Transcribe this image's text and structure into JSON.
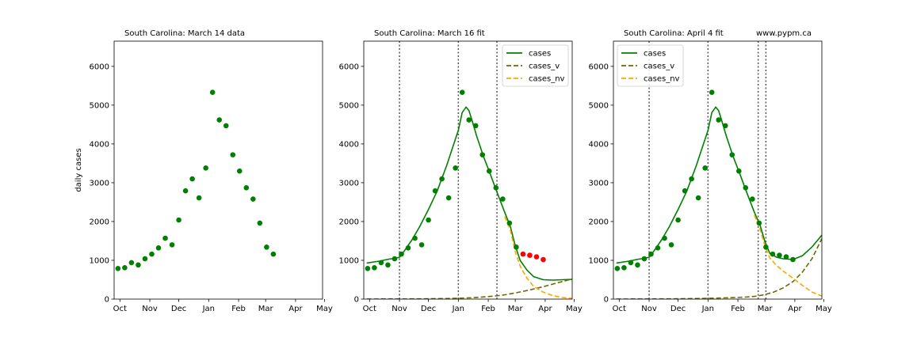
{
  "chart_data": [
    {
      "type": "scatter",
      "title": "South Carolina:  March 14 data",
      "ylabel": "daily cases",
      "xlim": [
        -6,
        210
      ],
      "ylim": [
        0,
        6650
      ],
      "x_ticks": [
        {
          "label": "Oct",
          "x": 0
        },
        {
          "label": "Nov",
          "x": 31
        },
        {
          "label": "Dec",
          "x": 61
        },
        {
          "label": "Jan",
          "x": 92
        },
        {
          "label": "Feb",
          "x": 123
        },
        {
          "label": "Mar",
          "x": 151
        },
        {
          "label": "Apr",
          "x": 182
        },
        {
          "label": "May",
          "x": 212
        }
      ],
      "y_ticks": [
        0,
        1000,
        2000,
        3000,
        4000,
        5000,
        6000
      ],
      "points": [
        {
          "x": -2,
          "y": 790,
          "color": "#008000"
        },
        {
          "x": 5,
          "y": 810,
          "color": "#008000"
        },
        {
          "x": 12,
          "y": 940,
          "color": "#008000"
        },
        {
          "x": 19,
          "y": 880,
          "color": "#008000"
        },
        {
          "x": 26,
          "y": 1040,
          "color": "#008000"
        },
        {
          "x": 33,
          "y": 1160,
          "color": "#008000"
        },
        {
          "x": 40,
          "y": 1320,
          "color": "#008000"
        },
        {
          "x": 47,
          "y": 1570,
          "color": "#008000"
        },
        {
          "x": 54,
          "y": 1400,
          "color": "#008000"
        },
        {
          "x": 61,
          "y": 2040,
          "color": "#008000"
        },
        {
          "x": 68,
          "y": 2790,
          "color": "#008000"
        },
        {
          "x": 75,
          "y": 3100,
          "color": "#008000"
        },
        {
          "x": 82,
          "y": 2610,
          "color": "#008000"
        },
        {
          "x": 89,
          "y": 3380,
          "color": "#008000"
        },
        {
          "x": 96,
          "y": 5330,
          "color": "#008000"
        },
        {
          "x": 103,
          "y": 4620,
          "color": "#008000"
        },
        {
          "x": 110,
          "y": 4470,
          "color": "#008000"
        },
        {
          "x": 117,
          "y": 3720,
          "color": "#008000"
        },
        {
          "x": 124,
          "y": 3300,
          "color": "#008000"
        },
        {
          "x": 131,
          "y": 2870,
          "color": "#008000"
        },
        {
          "x": 138,
          "y": 2580,
          "color": "#008000"
        },
        {
          "x": 145,
          "y": 1960,
          "color": "#008000"
        },
        {
          "x": 152,
          "y": 1340,
          "color": "#008000"
        },
        {
          "x": 159,
          "y": 1160,
          "color": "#008000"
        }
      ],
      "series": [],
      "vlines": [],
      "legend": null,
      "annotation": ""
    },
    {
      "type": "line",
      "title": "South Carolina:  March 16 fit",
      "ylabel": "",
      "xlim": [
        -6,
        210
      ],
      "ylim": [
        0,
        6650
      ],
      "x_ticks": [
        {
          "label": "Oct",
          "x": 0
        },
        {
          "label": "Nov",
          "x": 31
        },
        {
          "label": "Dec",
          "x": 61
        },
        {
          "label": "Jan",
          "x": 92
        },
        {
          "label": "Feb",
          "x": 123
        },
        {
          "label": "Mar",
          "x": 151
        },
        {
          "label": "Apr",
          "x": 182
        },
        {
          "label": "May",
          "x": 212
        }
      ],
      "y_ticks": [
        0,
        1000,
        2000,
        3000,
        4000,
        5000,
        6000
      ],
      "points": [
        {
          "x": -2,
          "y": 790,
          "color": "#008000"
        },
        {
          "x": 5,
          "y": 810,
          "color": "#008000"
        },
        {
          "x": 12,
          "y": 940,
          "color": "#008000"
        },
        {
          "x": 19,
          "y": 880,
          "color": "#008000"
        },
        {
          "x": 26,
          "y": 1040,
          "color": "#008000"
        },
        {
          "x": 33,
          "y": 1160,
          "color": "#008000"
        },
        {
          "x": 40,
          "y": 1320,
          "color": "#008000"
        },
        {
          "x": 47,
          "y": 1570,
          "color": "#008000"
        },
        {
          "x": 54,
          "y": 1400,
          "color": "#008000"
        },
        {
          "x": 61,
          "y": 2040,
          "color": "#008000"
        },
        {
          "x": 68,
          "y": 2790,
          "color": "#008000"
        },
        {
          "x": 75,
          "y": 3100,
          "color": "#008000"
        },
        {
          "x": 82,
          "y": 2610,
          "color": "#008000"
        },
        {
          "x": 89,
          "y": 3380,
          "color": "#008000"
        },
        {
          "x": 96,
          "y": 5330,
          "color": "#008000"
        },
        {
          "x": 103,
          "y": 4620,
          "color": "#008000"
        },
        {
          "x": 110,
          "y": 4470,
          "color": "#008000"
        },
        {
          "x": 117,
          "y": 3720,
          "color": "#008000"
        },
        {
          "x": 124,
          "y": 3300,
          "color": "#008000"
        },
        {
          "x": 131,
          "y": 2870,
          "color": "#008000"
        },
        {
          "x": 138,
          "y": 2580,
          "color": "#008000"
        },
        {
          "x": 145,
          "y": 1960,
          "color": "#008000"
        },
        {
          "x": 152,
          "y": 1340,
          "color": "#008000"
        },
        {
          "x": 159,
          "y": 1160,
          "color": "#FF0000"
        },
        {
          "x": 166,
          "y": 1130,
          "color": "#FF0000"
        },
        {
          "x": 173,
          "y": 1090,
          "color": "#FF0000"
        },
        {
          "x": 180,
          "y": 1020,
          "color": "#FF0000"
        }
      ],
      "series": [
        {
          "name": "cases",
          "color": "#008000",
          "dash": "solid",
          "x": [
            -3,
            10,
            20,
            26,
            31,
            36,
            44,
            52,
            61,
            70,
            80,
            86,
            92,
            96,
            100,
            103,
            106,
            111,
            118,
            125,
            132,
            140,
            146,
            151,
            156,
            163,
            170,
            180,
            190,
            200,
            210
          ],
          "y": [
            930,
            980,
            1030,
            1050,
            1080,
            1240,
            1530,
            1870,
            2310,
            2780,
            3450,
            3900,
            4350,
            4810,
            4950,
            4860,
            4620,
            4200,
            3680,
            3230,
            2760,
            2240,
            1860,
            1370,
            1000,
            750,
            580,
            500,
            490,
            500,
            510
          ]
        },
        {
          "name": "cases_v",
          "color": "#6B6B00",
          "dash": "dashed",
          "x": [
            -3,
            30,
            60,
            80,
            92,
            105,
            118,
            130,
            140,
            151,
            165,
            180,
            195,
            210
          ],
          "y": [
            2,
            4,
            8,
            14,
            22,
            35,
            55,
            80,
            110,
            160,
            230,
            320,
            420,
            520
          ]
        },
        {
          "name": "cases_nv",
          "color": "#FFA500",
          "dash": "dashed",
          "x": [
            140,
            146,
            151,
            156,
            163,
            170,
            180,
            190,
            200,
            210
          ],
          "y": [
            2130,
            1760,
            1220,
            850,
            540,
            330,
            180,
            90,
            40,
            20
          ]
        }
      ],
      "vlines": [
        31,
        92,
        132
      ],
      "legend": {
        "placement": "upper right",
        "entries": [
          "cases",
          "cases_v",
          "cases_nv"
        ]
      },
      "annotation": ""
    },
    {
      "type": "line",
      "title": "South Carolina:  April 4 fit",
      "ylabel": "",
      "xlim": [
        -6,
        210
      ],
      "ylim": [
        0,
        6650
      ],
      "x_ticks": [
        {
          "label": "Oct",
          "x": 0
        },
        {
          "label": "Nov",
          "x": 31
        },
        {
          "label": "Dec",
          "x": 61
        },
        {
          "label": "Jan",
          "x": 92
        },
        {
          "label": "Feb",
          "x": 123
        },
        {
          "label": "Mar",
          "x": 151
        },
        {
          "label": "Apr",
          "x": 182
        },
        {
          "label": "May",
          "x": 212
        }
      ],
      "y_ticks": [
        0,
        1000,
        2000,
        3000,
        4000,
        5000,
        6000
      ],
      "points": [
        {
          "x": -2,
          "y": 790,
          "color": "#008000"
        },
        {
          "x": 5,
          "y": 810,
          "color": "#008000"
        },
        {
          "x": 12,
          "y": 940,
          "color": "#008000"
        },
        {
          "x": 19,
          "y": 880,
          "color": "#008000"
        },
        {
          "x": 26,
          "y": 1040,
          "color": "#008000"
        },
        {
          "x": 33,
          "y": 1160,
          "color": "#008000"
        },
        {
          "x": 40,
          "y": 1320,
          "color": "#008000"
        },
        {
          "x": 47,
          "y": 1570,
          "color": "#008000"
        },
        {
          "x": 54,
          "y": 1400,
          "color": "#008000"
        },
        {
          "x": 61,
          "y": 2040,
          "color": "#008000"
        },
        {
          "x": 68,
          "y": 2790,
          "color": "#008000"
        },
        {
          "x": 75,
          "y": 3100,
          "color": "#008000"
        },
        {
          "x": 82,
          "y": 2610,
          "color": "#008000"
        },
        {
          "x": 89,
          "y": 3380,
          "color": "#008000"
        },
        {
          "x": 96,
          "y": 5330,
          "color": "#008000"
        },
        {
          "x": 103,
          "y": 4620,
          "color": "#008000"
        },
        {
          "x": 110,
          "y": 4470,
          "color": "#008000"
        },
        {
          "x": 117,
          "y": 3720,
          "color": "#008000"
        },
        {
          "x": 124,
          "y": 3300,
          "color": "#008000"
        },
        {
          "x": 131,
          "y": 2870,
          "color": "#008000"
        },
        {
          "x": 138,
          "y": 2580,
          "color": "#008000"
        },
        {
          "x": 145,
          "y": 1960,
          "color": "#008000"
        },
        {
          "x": 152,
          "y": 1340,
          "color": "#008000"
        },
        {
          "x": 159,
          "y": 1160,
          "color": "#008000"
        },
        {
          "x": 166,
          "y": 1130,
          "color": "#008000"
        },
        {
          "x": 173,
          "y": 1090,
          "color": "#008000"
        },
        {
          "x": 180,
          "y": 1020,
          "color": "#008000"
        }
      ],
      "series": [
        {
          "name": "cases",
          "color": "#008000",
          "dash": "solid",
          "x": [
            -3,
            10,
            20,
            26,
            31,
            36,
            44,
            52,
            61,
            70,
            80,
            86,
            92,
            96,
            100,
            103,
            106,
            111,
            118,
            125,
            132,
            140,
            146,
            151,
            156,
            163,
            170,
            180,
            190,
            200,
            210
          ],
          "y": [
            930,
            980,
            1030,
            1050,
            1080,
            1240,
            1530,
            1870,
            2310,
            2780,
            3450,
            3900,
            4350,
            4810,
            4950,
            4860,
            4620,
            4200,
            3680,
            3230,
            2760,
            2240,
            1900,
            1480,
            1180,
            1080,
            1040,
            1020,
            1120,
            1350,
            1650
          ]
        },
        {
          "name": "cases_v",
          "color": "#6B6B00",
          "dash": "dashed",
          "x": [
            -3,
            30,
            60,
            80,
            92,
            105,
            118,
            130,
            140,
            150,
            160,
            170,
            180,
            190,
            200,
            210
          ],
          "y": [
            2,
            4,
            8,
            14,
            20,
            28,
            38,
            50,
            70,
            110,
            180,
            290,
            450,
            700,
            1050,
            1560
          ]
        },
        {
          "name": "cases_nv",
          "color": "#FFA500",
          "dash": "dashed",
          "x": [
            140,
            146,
            151,
            156,
            163,
            170,
            180,
            190,
            200,
            210
          ],
          "y": [
            2170,
            1790,
            1370,
            1060,
            870,
            720,
            540,
            350,
            180,
            80
          ]
        }
      ],
      "vlines": [
        31,
        92,
        144,
        152
      ],
      "legend": {
        "placement": "upper left",
        "entries": [
          "cases",
          "cases_v",
          "cases_nv"
        ]
      },
      "annotation": "www.pypm.ca"
    }
  ]
}
